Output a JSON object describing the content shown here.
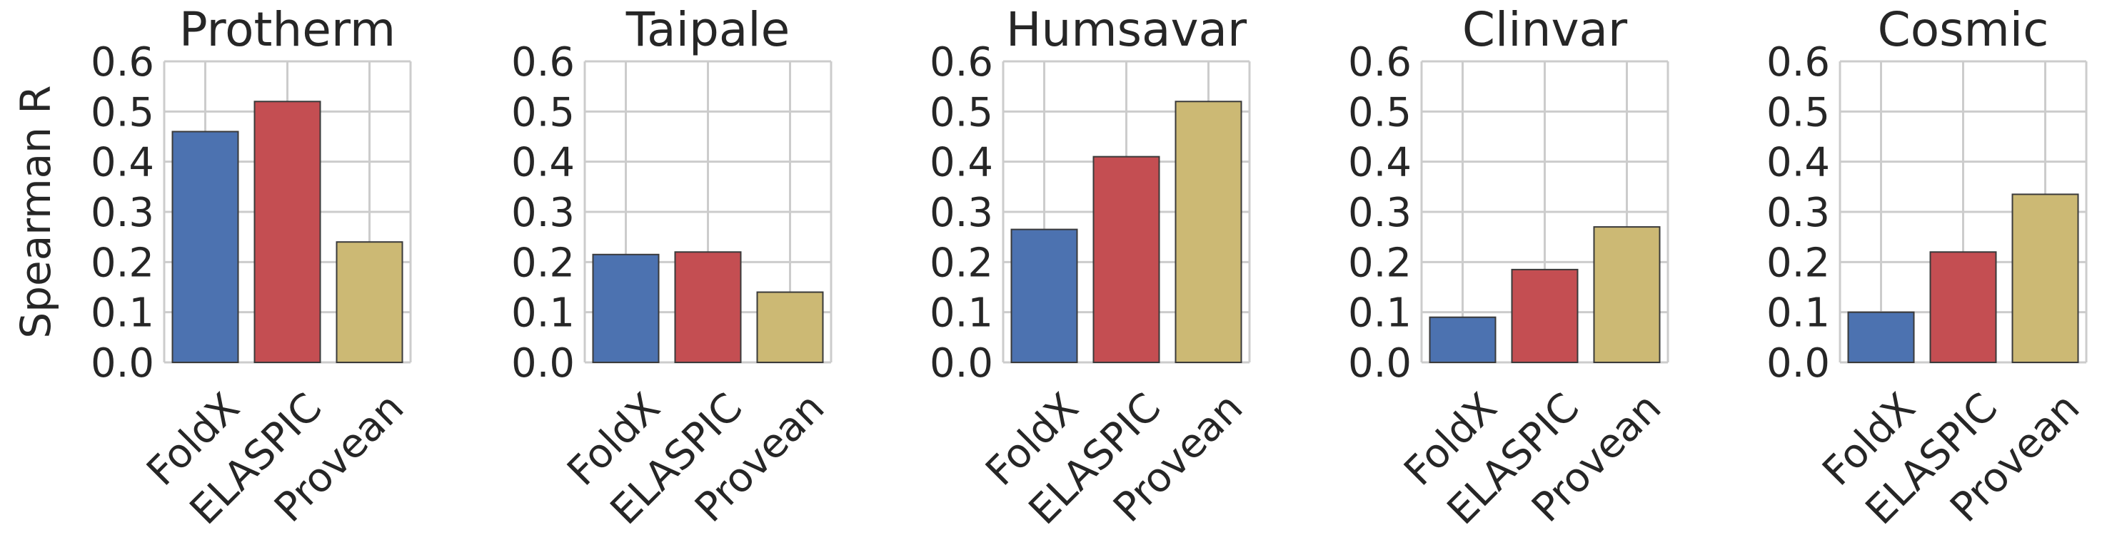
{
  "chart_data": [
    {
      "type": "bar",
      "title": "Protherm",
      "ylabel": "Spearman R",
      "ylim": [
        0,
        0.6
      ],
      "yticks": [
        "0.0",
        "0.1",
        "0.2",
        "0.3",
        "0.4",
        "0.5",
        "0.6"
      ],
      "categories": [
        "FoldX",
        "ELASPIC",
        "Provean"
      ],
      "values": [
        0.46,
        0.52,
        0.24
      ],
      "colors": [
        "#4c72b0",
        "#c44e52",
        "#ccb974"
      ],
      "grid": true
    },
    {
      "type": "bar",
      "title": "Taipale",
      "ylabel": "",
      "ylim": [
        0,
        0.6
      ],
      "yticks": [
        "0.0",
        "0.1",
        "0.2",
        "0.3",
        "0.4",
        "0.5",
        "0.6"
      ],
      "categories": [
        "FoldX",
        "ELASPIC",
        "Provean"
      ],
      "values": [
        0.215,
        0.22,
        0.14
      ],
      "colors": [
        "#4c72b0",
        "#c44e52",
        "#ccb974"
      ],
      "grid": true
    },
    {
      "type": "bar",
      "title": "Humsavar",
      "ylabel": "",
      "ylim": [
        0,
        0.6
      ],
      "yticks": [
        "0.0",
        "0.1",
        "0.2",
        "0.3",
        "0.4",
        "0.5",
        "0.6"
      ],
      "categories": [
        "FoldX",
        "ELASPIC",
        "Provean"
      ],
      "values": [
        0.265,
        0.41,
        0.52
      ],
      "colors": [
        "#4c72b0",
        "#c44e52",
        "#ccb974"
      ],
      "grid": true
    },
    {
      "type": "bar",
      "title": "Clinvar",
      "ylabel": "",
      "ylim": [
        0,
        0.6
      ],
      "yticks": [
        "0.0",
        "0.1",
        "0.2",
        "0.3",
        "0.4",
        "0.5",
        "0.6"
      ],
      "categories": [
        "FoldX",
        "ELASPIC",
        "Provean"
      ],
      "values": [
        0.09,
        0.185,
        0.27
      ],
      "colors": [
        "#4c72b0",
        "#c44e52",
        "#ccb974"
      ],
      "grid": true
    },
    {
      "type": "bar",
      "title": "Cosmic",
      "ylabel": "",
      "ylim": [
        0,
        0.6
      ],
      "yticks": [
        "0.0",
        "0.1",
        "0.2",
        "0.3",
        "0.4",
        "0.5",
        "0.6"
      ],
      "categories": [
        "FoldX",
        "ELASPIC",
        "Provean"
      ],
      "values": [
        0.1,
        0.22,
        0.335
      ],
      "colors": [
        "#4c72b0",
        "#c44e52",
        "#ccb974"
      ],
      "grid": true
    }
  ]
}
